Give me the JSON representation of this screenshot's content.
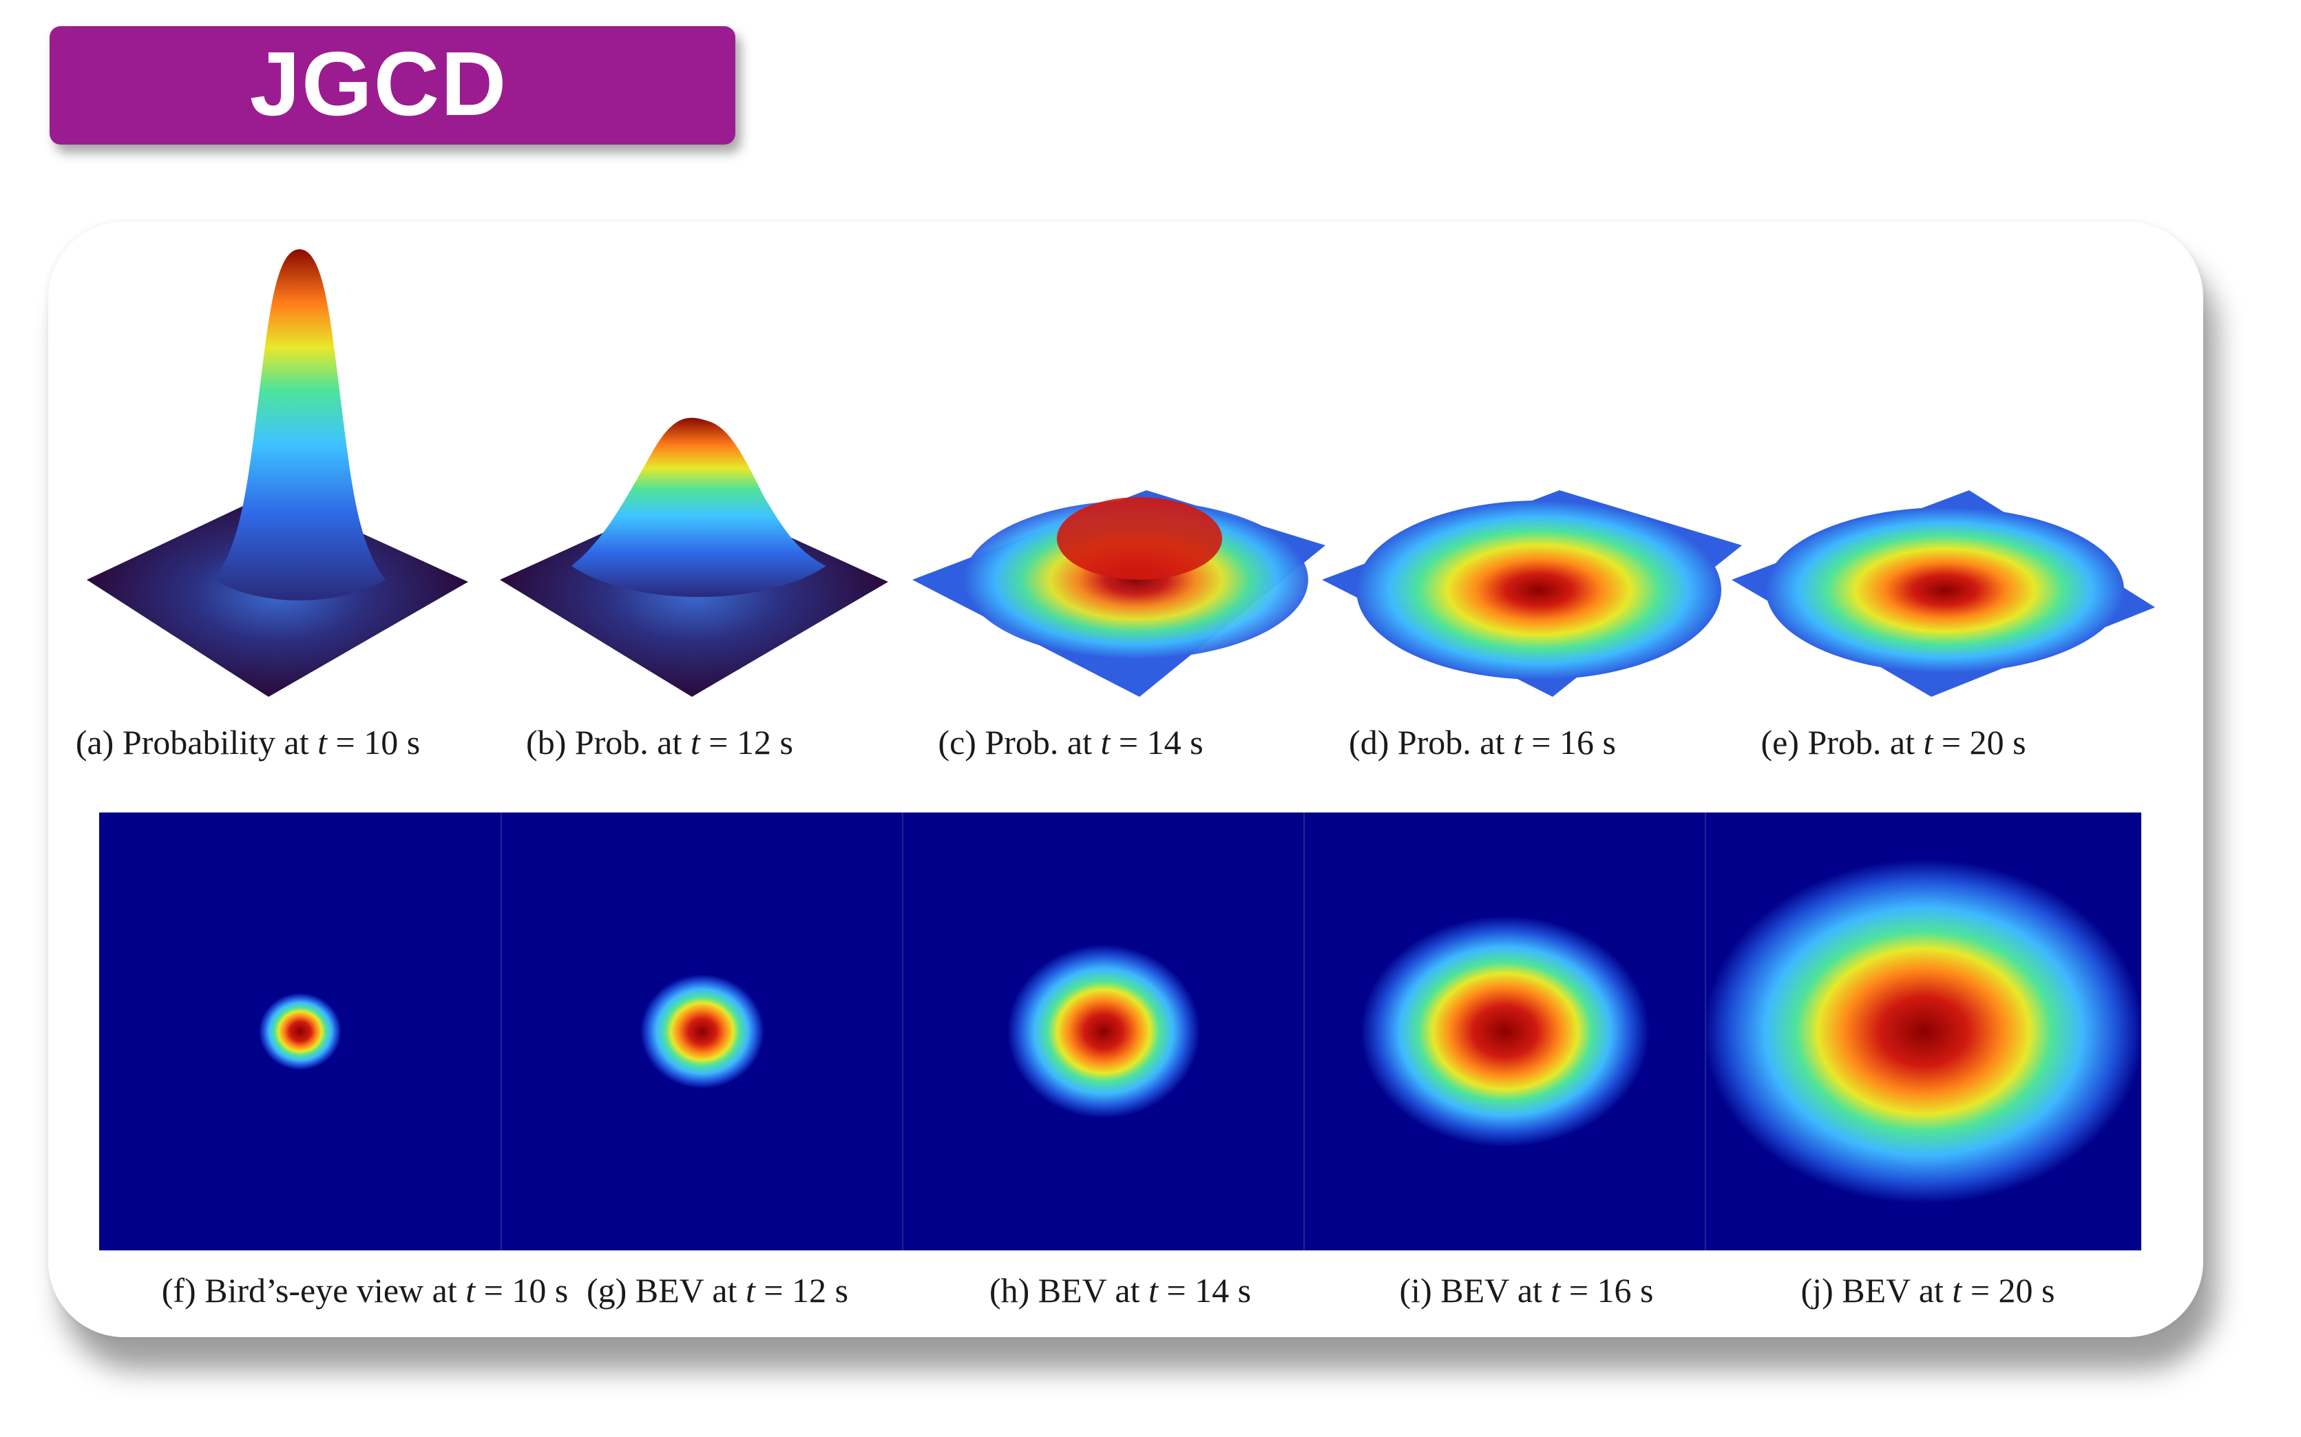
{
  "badge": {
    "label": "JGCD"
  },
  "surface_captions": [
    {
      "prefix": "(a)  Probability at ",
      "var": "t",
      "suffix": " = 10 s"
    },
    {
      "prefix": "(b)  Prob. at ",
      "var": "t",
      "suffix": " = 12 s"
    },
    {
      "prefix": "(c)  Prob. at ",
      "var": "t",
      "suffix": " = 14 s"
    },
    {
      "prefix": "(d)  Prob. at ",
      "var": "t",
      "suffix": " = 16 s"
    },
    {
      "prefix": "(e)  Prob. at ",
      "var": "t",
      "suffix": " = 20 s"
    }
  ],
  "bev_captions": [
    {
      "prefix": "(f)  Bird’s-eye view at ",
      "var": "t",
      "suffix": " = 10 s"
    },
    {
      "prefix": "(g)  BEV at ",
      "var": "t",
      "suffix": " = 12 s"
    },
    {
      "prefix": "(h)  BEV at ",
      "var": "t",
      "suffix": " = 14 s"
    },
    {
      "prefix": "(i)  BEV at ",
      "var": "t",
      "suffix": " = 16 s"
    },
    {
      "prefix": "(j)  BEV at ",
      "var": "t",
      "suffix": " = 20 s"
    }
  ],
  "colors": {
    "badge": "#9b1c91",
    "bev_background": "#00008b",
    "colormap": [
      "#2a0a3a",
      "#2f5fe0",
      "#3fb8ff",
      "#4fe39a",
      "#e8e82a",
      "#ff8a1a",
      "#d01a10",
      "#8a0000"
    ]
  }
}
